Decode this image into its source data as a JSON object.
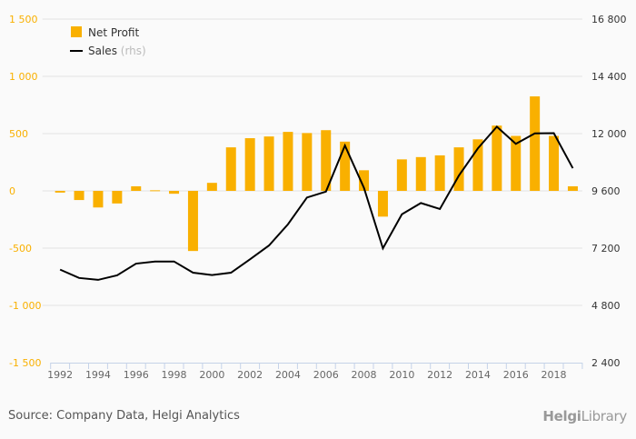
{
  "chart_data": {
    "type": "bar+line",
    "categories": [
      "1992",
      "1993",
      "1994",
      "1995",
      "1996",
      "1997",
      "1998",
      "1999",
      "2000",
      "2001",
      "2002",
      "2003",
      "2004",
      "2005",
      "2006",
      "2007",
      "2008",
      "2009",
      "2010",
      "2011",
      "2012",
      "2013",
      "2014",
      "2015",
      "2016",
      "2017",
      "2018",
      "2019"
    ],
    "x_tick_labels": [
      "1992",
      "1994",
      "1996",
      "1998",
      "2000",
      "2002",
      "2004",
      "2006",
      "2008",
      "2010",
      "2012",
      "2014",
      "2016",
      "2018"
    ],
    "series": [
      {
        "name": "Net Profit",
        "type": "bar",
        "axis": "left",
        "color": "#f9b000",
        "values": [
          -15,
          -80,
          -145,
          -110,
          40,
          5,
          -25,
          -525,
          70,
          380,
          460,
          475,
          515,
          505,
          530,
          430,
          180,
          -225,
          275,
          295,
          310,
          380,
          450,
          570,
          480,
          825,
          480,
          40
        ]
      },
      {
        "name": "Sales",
        "suffix": "(rhs)",
        "type": "line",
        "axis": "right",
        "color": "#000000",
        "values": [
          6300,
          5950,
          5870,
          6060,
          6550,
          6640,
          6640,
          6170,
          6070,
          6170,
          6730,
          7310,
          8200,
          9320,
          9570,
          11500,
          9730,
          7190,
          8620,
          9090,
          8840,
          10240,
          11380,
          12290,
          11570,
          12010,
          12020,
          10550
        ]
      }
    ],
    "left_axis": {
      "ylim": [
        -1500,
        1500
      ],
      "ticks": [
        -1500,
        -1000,
        -500,
        0,
        500,
        1000,
        1500
      ],
      "tick_labels": [
        "-1 500",
        "-1 000",
        "-500",
        "0",
        "500",
        "1 000",
        "1 500"
      ],
      "color": "#f9b000"
    },
    "right_axis": {
      "ylim": [
        2400,
        16800
      ],
      "ticks": [
        2400,
        4800,
        7200,
        9600,
        12000,
        14400,
        16800
      ],
      "tick_labels": [
        "2 400",
        "4 800",
        "7 200",
        "9 600",
        "12 000",
        "14 400",
        "16 800"
      ],
      "color": "#333333"
    },
    "grid": true,
    "legend_position": "top-left"
  },
  "legend": {
    "net_profit": "Net Profit",
    "sales": "Sales",
    "sales_suffix": "(rhs)"
  },
  "footer": {
    "source": "Source: Company Data, Helgi Analytics",
    "logo_main": "Helgi",
    "logo_sub": "Library"
  }
}
